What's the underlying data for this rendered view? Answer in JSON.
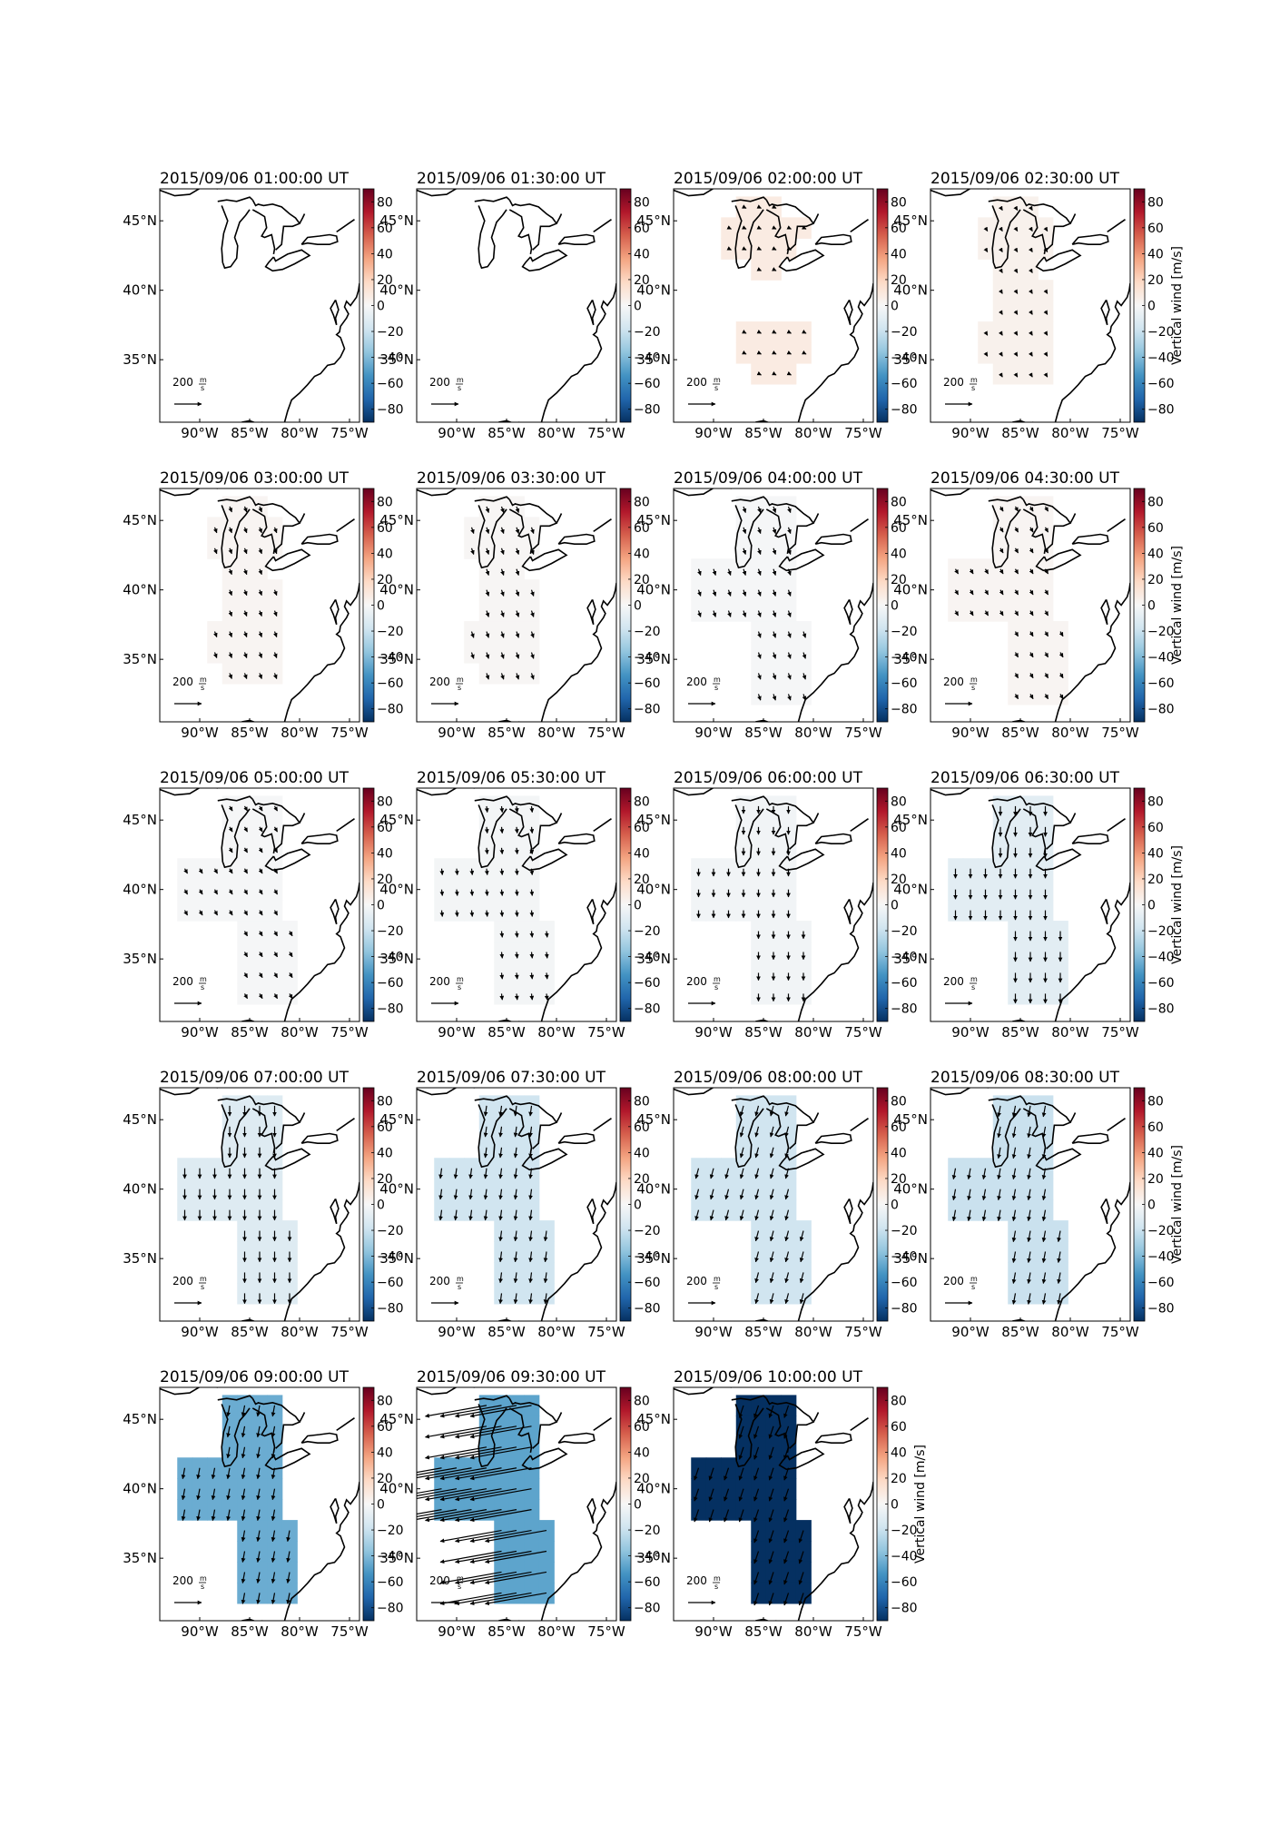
{
  "figure": {
    "colorbar_label": "Vertical wind [m/s]",
    "colorbar_ticks": [
      "80",
      "60",
      "40",
      "20",
      "0",
      "−20",
      "−40",
      "−60",
      "−80"
    ],
    "colorbar_tick_values": [
      80,
      60,
      40,
      20,
      0,
      -20,
      -40,
      -60,
      -80
    ],
    "lat_labels": [
      "45°N",
      "40°N",
      "35°N"
    ],
    "lat_values": [
      45,
      40,
      35
    ],
    "lon_labels": [
      "90°W",
      "85°W",
      "80°W",
      "75°W"
    ],
    "lon_values": [
      -90,
      -85,
      -80,
      -75
    ],
    "reference_vector_label": "200",
    "reference_vector_unit_num": "m",
    "reference_vector_unit_den": "s",
    "colormap": [
      "#053061",
      "#2166ac",
      "#4393c3",
      "#92c5de",
      "#d1e5f0",
      "#f7f7f7",
      "#fddbc7",
      "#f4a582",
      "#d6604d",
      "#b2182b",
      "#67001f"
    ]
  },
  "chart_data": [
    {
      "type": "heatmap",
      "title": "2015/09/06 01:00:00 UT",
      "vertical_wind": null,
      "wind_u": 0,
      "wind_v": 0,
      "region": "none"
    },
    {
      "type": "heatmap",
      "title": "2015/09/06 01:30:00 UT",
      "vertical_wind": null,
      "wind_u": 0,
      "wind_v": 0,
      "region": "none"
    },
    {
      "type": "heatmap",
      "title": "2015/09/06 02:00:00 UT",
      "vertical_wind": 8,
      "wind_u": 20,
      "wind_v": -10,
      "region": "split"
    },
    {
      "type": "heatmap",
      "title": "2015/09/06 02:30:00 UT",
      "vertical_wind": 4,
      "wind_u": 15,
      "wind_v": -25,
      "region": "hourglass"
    },
    {
      "type": "heatmap",
      "title": "2015/09/06 03:00:00 UT",
      "vertical_wind": 2,
      "wind_u": 15,
      "wind_v": -40,
      "region": "hourglass"
    },
    {
      "type": "heatmap",
      "title": "2015/09/06 03:30:00 UT",
      "vertical_wind": 1,
      "wind_u": 15,
      "wind_v": -45,
      "region": "hourglass"
    },
    {
      "type": "heatmap",
      "title": "2015/09/06 04:00:00 UT",
      "vertical_wind": -1,
      "wind_u": 15,
      "wind_v": -45,
      "region": "wide"
    },
    {
      "type": "heatmap",
      "title": "2015/09/06 04:30:00 UT",
      "vertical_wind": 2,
      "wind_u": 20,
      "wind_v": -35,
      "region": "wide"
    },
    {
      "type": "heatmap",
      "title": "2015/09/06 05:00:00 UT",
      "vertical_wind": -1,
      "wind_u": 20,
      "wind_v": -35,
      "region": "wide"
    },
    {
      "type": "heatmap",
      "title": "2015/09/06 05:30:00 UT",
      "vertical_wind": -2,
      "wind_u": 5,
      "wind_v": -45,
      "region": "wide"
    },
    {
      "type": "heatmap",
      "title": "2015/09/06 06:00:00 UT",
      "vertical_wind": -3,
      "wind_u": 0,
      "wind_v": -55,
      "region": "wide"
    },
    {
      "type": "heatmap",
      "title": "2015/09/06 06:30:00 UT",
      "vertical_wind": -10,
      "wind_u": 0,
      "wind_v": -70,
      "region": "wide"
    },
    {
      "type": "heatmap",
      "title": "2015/09/06 07:00:00 UT",
      "vertical_wind": -12,
      "wind_u": 0,
      "wind_v": -75,
      "region": "wide"
    },
    {
      "type": "heatmap",
      "title": "2015/09/06 07:30:00 UT",
      "vertical_wind": -18,
      "wind_u": -10,
      "wind_v": -75,
      "region": "wide"
    },
    {
      "type": "heatmap",
      "title": "2015/09/06 08:00:00 UT",
      "vertical_wind": -18,
      "wind_u": -20,
      "wind_v": -75,
      "region": "wide"
    },
    {
      "type": "heatmap",
      "title": "2015/09/06 08:30:00 UT",
      "vertical_wind": -20,
      "wind_u": -15,
      "wind_v": -80,
      "region": "wide"
    },
    {
      "type": "heatmap",
      "title": "2015/09/06 09:00:00 UT",
      "vertical_wind": -45,
      "wind_u": -15,
      "wind_v": -80,
      "region": "wide"
    },
    {
      "type": "heatmap",
      "title": "2015/09/06 09:30:00 UT",
      "vertical_wind": -48,
      "wind_u": -450,
      "wind_v": -80,
      "region": "wide"
    },
    {
      "type": "heatmap",
      "title": "2015/09/06 10:00:00 UT",
      "vertical_wind": -90,
      "wind_u": -30,
      "wind_v": -90,
      "region": "wide"
    }
  ]
}
